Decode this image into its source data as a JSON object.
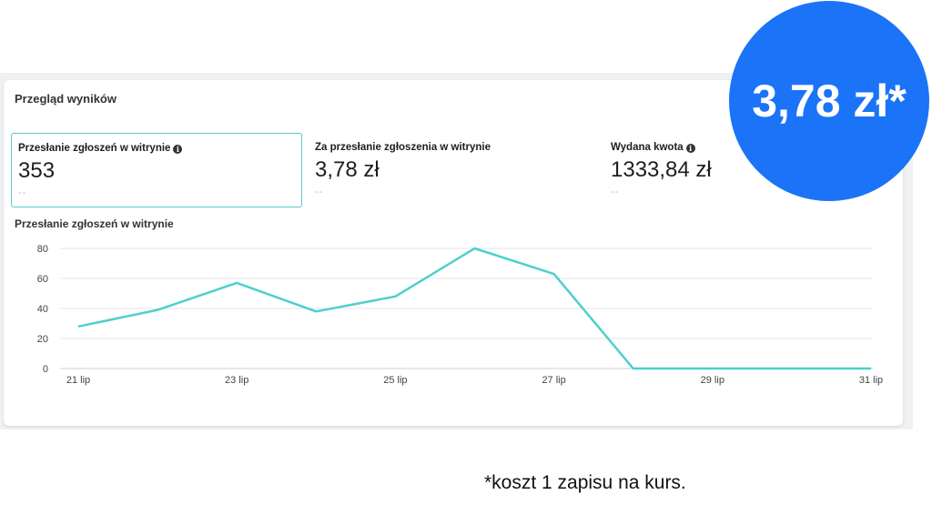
{
  "overview": {
    "title": "Przegląd wyników"
  },
  "metrics": [
    {
      "label": "Przesłanie zgłoszeń w witrynie",
      "value": "353",
      "delta": "--",
      "has_info": true
    },
    {
      "label": "Za przesłanie zgłoszenia w witrynie",
      "value": "3,78 zł",
      "delta": "--",
      "has_info": false
    },
    {
      "label": "Wydana kwota",
      "value": "1333,84 zł",
      "delta": "--",
      "has_info": true
    }
  ],
  "badge": {
    "text": "3,78 zł*",
    "color": "#1b74f7"
  },
  "footnote": "*koszt 1 zapisu na kurs.",
  "colors": {
    "line": "#4dd0cc",
    "active_border": "#5cc8c8",
    "grid": "#e6e6e6"
  },
  "chart_data": {
    "type": "line",
    "title": "Przesłanie zgłoszeń w witrynie",
    "x": [
      "21 lip",
      "22 lip",
      "23 lip",
      "24 lip",
      "25 lip",
      "26 lip",
      "27 lip",
      "28 lip",
      "29 lip",
      "30 lip",
      "31 lip"
    ],
    "xticks": [
      "21 lip",
      "23 lip",
      "25 lip",
      "27 lip",
      "29 lip",
      "31 lip"
    ],
    "series": [
      {
        "values": [
          28,
          39,
          57,
          38,
          48,
          80,
          63,
          0,
          0,
          0,
          0
        ]
      }
    ],
    "yticks": [
      0,
      20,
      40,
      60,
      80
    ],
    "ylim": [
      0,
      80
    ],
    "grid": true,
    "xlabel": "",
    "ylabel": ""
  }
}
